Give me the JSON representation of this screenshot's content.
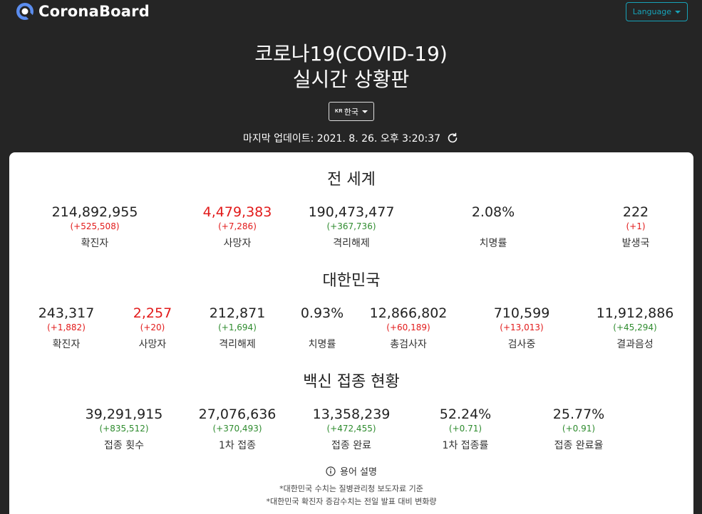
{
  "header": {
    "brand": "CoronaBoard",
    "language_button": "Language",
    "title_line1": "코로나19(COVID-19)",
    "title_line2": "실시간 상황판",
    "country_flag": "KR",
    "country_label": "한국",
    "last_update": "마지막 업데이트: 2021. 8. 26. 오후 3:20:37"
  },
  "world": {
    "title": "전 세계",
    "stats": [
      {
        "value": "214,892,955",
        "delta": "(+525,508)",
        "label": "확진자"
      },
      {
        "value": "4,479,383",
        "delta": "(+7,286)",
        "label": "사망자"
      },
      {
        "value": "190,473,477",
        "delta": "(+367,736)",
        "label": "격리해제"
      },
      {
        "value": "2.08%",
        "delta": "",
        "label": "치명률"
      },
      {
        "value": "222",
        "delta": "(+1)",
        "label": "발생국"
      }
    ]
  },
  "korea": {
    "title": "대한민국",
    "stats": [
      {
        "value": "243,317",
        "delta": "(+1,882)",
        "label": "확진자"
      },
      {
        "value": "2,257",
        "delta": "(+20)",
        "label": "사망자"
      },
      {
        "value": "212,871",
        "delta": "(+1,694)",
        "label": "격리해제"
      },
      {
        "value": "0.93%",
        "delta": "",
        "label": "치명률"
      },
      {
        "value": "12,866,802",
        "delta": "(+60,189)",
        "label": "총검사자"
      },
      {
        "value": "710,599",
        "delta": "(+13,013)",
        "label": "검사중"
      },
      {
        "value": "11,912,886",
        "delta": "(+45,294)",
        "label": "결과음성"
      }
    ]
  },
  "vaccine": {
    "title": "백신 접종 현황",
    "stats": [
      {
        "value": "39,291,915",
        "delta": "(+835,512)",
        "label": "접종 횟수"
      },
      {
        "value": "27,076,636",
        "delta": "(+370,493)",
        "label": "1차 접종"
      },
      {
        "value": "13,358,239",
        "delta": "(+472,455)",
        "label": "접종 완료"
      },
      {
        "value": "52.24%",
        "delta": "(+0.71)",
        "label": "1차 접종률"
      },
      {
        "value": "25.77%",
        "delta": "(+0.91)",
        "label": "접종 완료율"
      }
    ]
  },
  "footer": {
    "glossary": "용어 설명",
    "note1": "*대한민국 수치는 질병관리청 보도자료 기준",
    "note2": "*대한민국 확진자 증감수치는 전일 발표 대비 변화량"
  },
  "colors": {
    "background": "#252525",
    "increase_bad": "#e21a1a",
    "increase_good": "#2e8b2e",
    "language_accent": "#17a2b8"
  }
}
